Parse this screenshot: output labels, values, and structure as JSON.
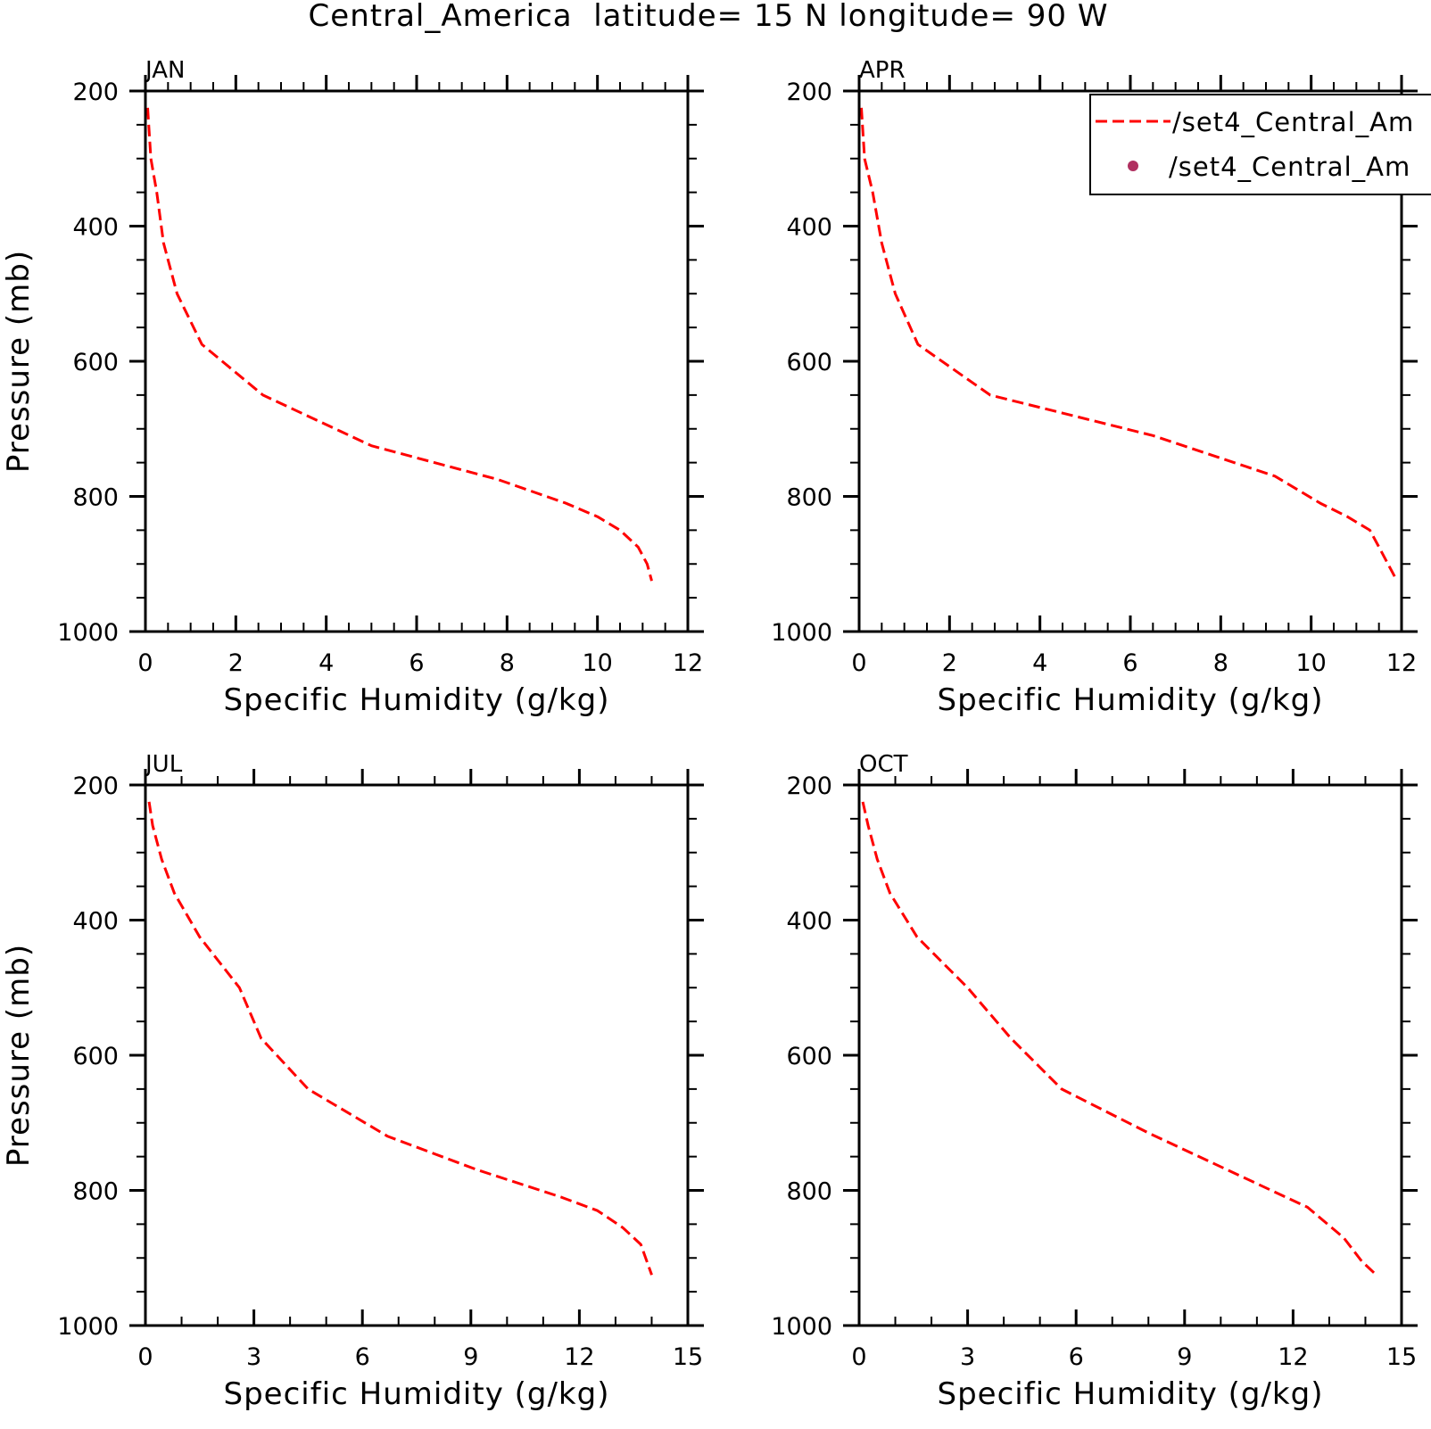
{
  "figure_title": "Central_America  latitude= 15 N longitude= 90 W",
  "legend": {
    "entries": [
      {
        "label": "/set4_Central_Am",
        "marker": "dashed-line",
        "color": "#ff0000"
      },
      {
        "label": "/set4_Central_Am",
        "marker": "dot",
        "color": "#b03060"
      }
    ]
  },
  "chart_data": [
    {
      "type": "line",
      "title": "JAN",
      "xlabel": "Specific Humidity (g/kg)",
      "ylabel": "Pressure (mb)",
      "xlim": [
        0,
        12
      ],
      "ylim": [
        1000,
        200
      ],
      "y_inverted": true,
      "xticks": [
        0,
        2,
        4,
        6,
        8,
        10,
        12
      ],
      "yticks": [
        200,
        400,
        600,
        800,
        1000
      ],
      "series": [
        {
          "color": "#ff0000",
          "style": "dashed",
          "x": [
            0.05,
            0.12,
            0.25,
            0.4,
            0.7,
            1.25,
            2.6,
            5.0,
            7.8,
            9.3,
            10.0,
            10.5,
            10.9,
            11.1,
            11.2
          ],
          "y": [
            225,
            300,
            350,
            425,
            500,
            575,
            650,
            725,
            775,
            810,
            830,
            850,
            875,
            900,
            925
          ]
        }
      ]
    },
    {
      "type": "line",
      "title": "APR",
      "xlabel": "Specific Humidity (g/kg)",
      "ylabel": "",
      "xlim": [
        0,
        12
      ],
      "ylim": [
        1000,
        200
      ],
      "y_inverted": true,
      "xticks": [
        0,
        2,
        4,
        6,
        8,
        10,
        12
      ],
      "yticks": [
        200,
        400,
        600,
        800,
        1000
      ],
      "series": [
        {
          "color": "#ff0000",
          "style": "dashed",
          "x": [
            0.05,
            0.12,
            0.3,
            0.5,
            0.8,
            1.3,
            2.9,
            6.5,
            9.2,
            10.2,
            10.8,
            11.3,
            11.5,
            11.7,
            11.9
          ],
          "y": [
            225,
            300,
            350,
            425,
            500,
            575,
            650,
            710,
            770,
            810,
            830,
            850,
            875,
            900,
            925
          ]
        }
      ]
    },
    {
      "type": "line",
      "title": "JUL",
      "xlabel": "Specific Humidity (g/kg)",
      "ylabel": "Pressure (mb)",
      "xlim": [
        0,
        15
      ],
      "ylim": [
        1000,
        200
      ],
      "y_inverted": true,
      "xticks": [
        0,
        3,
        6,
        9,
        12,
        15
      ],
      "yticks": [
        200,
        400,
        600,
        800,
        1000
      ],
      "series": [
        {
          "color": "#ff0000",
          "style": "dashed",
          "x": [
            0.1,
            0.2,
            0.45,
            0.8,
            1.5,
            2.6,
            3.2,
            4.5,
            6.7,
            9.2,
            11.5,
            12.5,
            13.2,
            13.7,
            14.0
          ],
          "y": [
            225,
            260,
            310,
            360,
            425,
            500,
            575,
            650,
            720,
            770,
            810,
            830,
            855,
            880,
            925
          ]
        }
      ]
    },
    {
      "type": "line",
      "title": "OCT",
      "xlabel": "Specific Humidity (g/kg)",
      "ylabel": "",
      "xlim": [
        0,
        15
      ],
      "ylim": [
        1000,
        200
      ],
      "y_inverted": true,
      "xticks": [
        0,
        3,
        6,
        9,
        12,
        15
      ],
      "yticks": [
        200,
        400,
        600,
        800,
        1000
      ],
      "series": [
        {
          "color": "#ff0000",
          "style": "dashed",
          "x": [
            0.1,
            0.25,
            0.5,
            0.85,
            1.6,
            3.0,
            4.2,
            5.6,
            8.0,
            10.2,
            12.4,
            13.4,
            13.9,
            14.3
          ],
          "y": [
            225,
            260,
            310,
            360,
            425,
            500,
            575,
            650,
            715,
            770,
            825,
            870,
            905,
            925
          ]
        }
      ]
    }
  ]
}
